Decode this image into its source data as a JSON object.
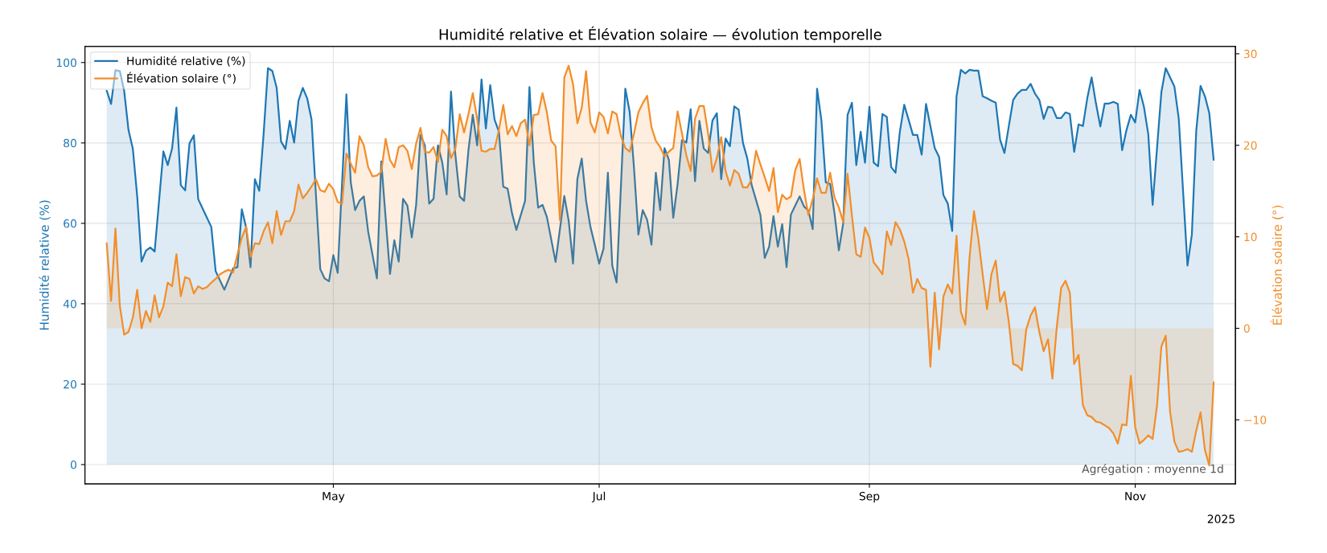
{
  "chart_data": {
    "type": "area",
    "title": "Humidité relative et Élévation solaire — évolution temporelle",
    "ylabel": "Humidité relative (%)",
    "y2label": "Élévation solaire (°)",
    "xlim": [
      "2025-03-05",
      "2025-11-24"
    ],
    "xticks": [
      {
        "value": "2025-05-01",
        "label": "May"
      },
      {
        "value": "2025-07-01",
        "label": "Jul"
      },
      {
        "value": "2025-09-01",
        "label": "Sep"
      },
      {
        "value": "2025-11-01",
        "label": "Nov"
      }
    ],
    "ylim": [
      -4.8,
      104.0
    ],
    "yticks": [
      0,
      20,
      40,
      60,
      80,
      100
    ],
    "y2lim": [
      -17.0,
      30.8
    ],
    "y2ticks": [
      {
        "value": -10,
        "label": "−10"
      },
      0,
      10,
      20,
      30
    ],
    "grid": true,
    "legend": "top left",
    "line_style": "solid",
    "marker": "none",
    "annotations": [
      "Agrégation : moyenne 1d",
      "2025"
    ],
    "series": [
      {
        "name": "Humidité relative (%)",
        "color": "#1f77b4",
        "axis": "y",
        "x": [
          "2025-03-10",
          "2025-03-11",
          "2025-03-12",
          "2025-03-13",
          "2025-03-14",
          "2025-03-15",
          "2025-03-16",
          "2025-03-17",
          "2025-03-18",
          "2025-03-19",
          "2025-03-20",
          "2025-03-21",
          "2025-03-23",
          "2025-03-24",
          "2025-03-25",
          "2025-03-26",
          "2025-03-27",
          "2025-03-28",
          "2025-03-29",
          "2025-03-30",
          "2025-03-31",
          "2025-04-03",
          "2025-04-04",
          "2025-04-06",
          "2025-04-08",
          "2025-04-09",
          "2025-04-10",
          "2025-04-11",
          "2025-04-12",
          "2025-04-13",
          "2025-04-14",
          "2025-04-15",
          "2025-04-16",
          "2025-04-17",
          "2025-04-18",
          "2025-04-19",
          "2025-04-20",
          "2025-04-21",
          "2025-04-22",
          "2025-04-23",
          "2025-04-24",
          "2025-04-25",
          "2025-04-26",
          "2025-04-28",
          "2025-04-29",
          "2025-04-30",
          "2025-05-01",
          "2025-05-02",
          "2025-05-04",
          "2025-05-05",
          "2025-05-06",
          "2025-05-07",
          "2025-05-08",
          "2025-05-09",
          "2025-05-11",
          "2025-05-12",
          "2025-05-14",
          "2025-05-15",
          "2025-05-16",
          "2025-05-17",
          "2025-05-18",
          "2025-05-19",
          "2025-05-20",
          "2025-05-21",
          "2025-05-22",
          "2025-05-23",
          "2025-05-24",
          "2025-05-25",
          "2025-05-26",
          "2025-05-27",
          "2025-05-28",
          "2025-05-29",
          "2025-05-30",
          "2025-05-31",
          "2025-06-01",
          "2025-06-02",
          "2025-06-03",
          "2025-06-04",
          "2025-06-05",
          "2025-06-06",
          "2025-06-07",
          "2025-06-08",
          "2025-06-09",
          "2025-06-10",
          "2025-06-11",
          "2025-06-12",
          "2025-06-14",
          "2025-06-15",
          "2025-06-16",
          "2025-06-17",
          "2025-06-18",
          "2025-06-19",
          "2025-06-21",
          "2025-06-23",
          "2025-06-24",
          "2025-06-25",
          "2025-06-26",
          "2025-06-27",
          "2025-06-28",
          "2025-06-29",
          "2025-06-30",
          "2025-07-01",
          "2025-07-02",
          "2025-07-03",
          "2025-07-04",
          "2025-07-05",
          "2025-07-07",
          "2025-07-08",
          "2025-07-09",
          "2025-07-10",
          "2025-07-11",
          "2025-07-12",
          "2025-07-13",
          "2025-07-14",
          "2025-07-15",
          "2025-07-16",
          "2025-07-17",
          "2025-07-18",
          "2025-07-19",
          "2025-07-20",
          "2025-07-21",
          "2025-07-22",
          "2025-07-23",
          "2025-07-24",
          "2025-07-25",
          "2025-07-26",
          "2025-07-27",
          "2025-07-28",
          "2025-07-29",
          "2025-07-30",
          "2025-07-31",
          "2025-08-01",
          "2025-08-02",
          "2025-08-03",
          "2025-08-04",
          "2025-08-05",
          "2025-08-07",
          "2025-08-08",
          "2025-08-09",
          "2025-08-10",
          "2025-08-11",
          "2025-08-12",
          "2025-08-13",
          "2025-08-14",
          "2025-08-16",
          "2025-08-17",
          "2025-08-18",
          "2025-08-19",
          "2025-08-20",
          "2025-08-21",
          "2025-08-22",
          "2025-08-23",
          "2025-08-24",
          "2025-08-25",
          "2025-08-26",
          "2025-08-27",
          "2025-08-28",
          "2025-08-29",
          "2025-08-30",
          "2025-08-31",
          "2025-09-01",
          "2025-09-02",
          "2025-09-03",
          "2025-09-04",
          "2025-09-05",
          "2025-09-06",
          "2025-09-07",
          "2025-09-08",
          "2025-09-09",
          "2025-09-10",
          "2025-09-11",
          "2025-09-12",
          "2025-09-13",
          "2025-09-14",
          "2025-09-15",
          "2025-09-16",
          "2025-09-17",
          "2025-09-18",
          "2025-09-19",
          "2025-09-20",
          "2025-09-21",
          "2025-09-22",
          "2025-09-23",
          "2025-09-24",
          "2025-09-25",
          "2025-09-26",
          "2025-09-27",
          "2025-09-28",
          "2025-09-29",
          "2025-09-30",
          "2025-10-01",
          "2025-10-02",
          "2025-10-03",
          "2025-10-04",
          "2025-10-05",
          "2025-10-06",
          "2025-10-07",
          "2025-10-08",
          "2025-10-09",
          "2025-10-10",
          "2025-10-11",
          "2025-10-12",
          "2025-10-13",
          "2025-10-14",
          "2025-10-15",
          "2025-10-16",
          "2025-10-17",
          "2025-10-18",
          "2025-10-19",
          "2025-10-20",
          "2025-10-21",
          "2025-10-22",
          "2025-10-23",
          "2025-10-24",
          "2025-10-25",
          "2025-10-26",
          "2025-10-27",
          "2025-10-28",
          "2025-10-29",
          "2025-10-30",
          "2025-10-31",
          "2025-11-01",
          "2025-11-02",
          "2025-11-03",
          "2025-11-04",
          "2025-11-05",
          "2025-11-07",
          "2025-11-08",
          "2025-11-09",
          "2025-11-10",
          "2025-11-11",
          "2025-11-13",
          "2025-11-14",
          "2025-11-15",
          "2025-11-16",
          "2025-11-17",
          "2025-11-18",
          "2025-11-19"
        ],
        "values": [
          93.0,
          89.7,
          98.1,
          97.9,
          93.0,
          83.2,
          78.5,
          66.7,
          50.5,
          53.2,
          54.0,
          53.0,
          77.9,
          74.5,
          78.6,
          88.8,
          69.5,
          68.2,
          79.9,
          81.9,
          66.0,
          59.1,
          48.1,
          43.5,
          48.8,
          49.1,
          63.5,
          58.9,
          49.1,
          71.0,
          68.1,
          82.2,
          98.6,
          97.9,
          93.7,
          80.4,
          78.5,
          85.5,
          80.1,
          90.5,
          93.7,
          91.1,
          85.8,
          48.6,
          46.3,
          45.6,
          52.1,
          47.7,
          92.1,
          70.2,
          63.3,
          65.6,
          66.7,
          57.9,
          46.3,
          75.4,
          47.4,
          55.8,
          50.5,
          66.1,
          64.4,
          56.5,
          64.6,
          82.0,
          79.4,
          64.9,
          66.1,
          79.4,
          75.1,
          67.2,
          92.8,
          77.1,
          66.7,
          65.6,
          78.2,
          87.0,
          79.4,
          95.8,
          83.6,
          94.4,
          85.8,
          82.8,
          69.1,
          68.6,
          62.5,
          58.4,
          65.6,
          93.9,
          75.1,
          63.9,
          64.6,
          61.6,
          50.4,
          66.8,
          60.7,
          50.0,
          71.0,
          76.1,
          65.6,
          59.1,
          54.7,
          50.0,
          53.7,
          72.6,
          49.5,
          45.3,
          93.5,
          87.7,
          73.7,
          57.2,
          63.3,
          60.9,
          54.7,
          72.6,
          63.3,
          78.7,
          75.8,
          61.4,
          69.8,
          80.7,
          80.1,
          88.4,
          70.5,
          85.5,
          78.6,
          77.5,
          85.6,
          87.4,
          71.0,
          81.1,
          79.2,
          89.1,
          88.3,
          80.0,
          76.1,
          69.5,
          62.1,
          51.4,
          54.2,
          61.8,
          54.2,
          59.8,
          49.1,
          62.2,
          66.7,
          64.2,
          63.2,
          58.6,
          93.5,
          85.6,
          70.2,
          69.8,
          62.5,
          53.3,
          60.0,
          87.0,
          90.0,
          74.5,
          82.8,
          75.1,
          89.0,
          75.1,
          74.2,
          87.2,
          86.5,
          74.0,
          72.6,
          82.8,
          89.5,
          85.8,
          82.0,
          82.0,
          77.1,
          89.7,
          84.2,
          78.7,
          76.5,
          67.0,
          64.9,
          58.1,
          91.6,
          98.2,
          97.3,
          98.2,
          98.0,
          98.0,
          91.6,
          91.1,
          90.5,
          90.0,
          80.8,
          77.5,
          84.2,
          90.7,
          92.3,
          93.2,
          93.2,
          94.7,
          92.3,
          90.7,
          86.0,
          89.0,
          88.8,
          86.2,
          86.2,
          87.6,
          87.2,
          77.8,
          84.6,
          84.2,
          91.1,
          96.3,
          89.8,
          84.1,
          89.8,
          89.8,
          90.2,
          89.7,
          78.2,
          83.2,
          87.0,
          85.1,
          93.2,
          89.0,
          82.2,
          64.6,
          92.6,
          98.6,
          96.3,
          94.0,
          86.0,
          49.5,
          57.2,
          82.9,
          94.2,
          91.6,
          87.4,
          75.8
        ]
      },
      {
        "name": "Élévation solaire (°)",
        "color": "#f28e2b",
        "axis": "y2",
        "x": [
          "2025-03-10",
          "2025-03-11",
          "2025-03-12",
          "2025-03-13",
          "2025-03-14",
          "2025-03-15",
          "2025-03-16",
          "2025-03-17",
          "2025-03-18",
          "2025-03-19",
          "2025-03-20",
          "2025-03-21",
          "2025-03-22",
          "2025-03-23",
          "2025-03-24",
          "2025-03-25",
          "2025-03-26",
          "2025-03-27",
          "2025-03-28",
          "2025-03-29",
          "2025-03-30",
          "2025-03-31",
          "2025-04-01",
          "2025-04-02",
          "2025-04-03",
          "2025-04-04",
          "2025-04-05",
          "2025-04-06",
          "2025-04-07",
          "2025-04-08",
          "2025-04-09",
          "2025-04-10",
          "2025-04-11",
          "2025-04-12",
          "2025-04-13",
          "2025-04-14",
          "2025-04-15",
          "2025-04-16",
          "2025-04-17",
          "2025-04-18",
          "2025-04-19",
          "2025-04-20",
          "2025-04-21",
          "2025-04-22",
          "2025-04-23",
          "2025-04-24",
          "2025-04-25",
          "2025-04-26",
          "2025-04-27",
          "2025-04-28",
          "2025-04-29",
          "2025-04-30",
          "2025-05-01",
          "2025-05-02",
          "2025-05-03",
          "2025-05-04",
          "2025-05-05",
          "2025-05-06",
          "2025-05-07",
          "2025-05-08",
          "2025-05-09",
          "2025-05-10",
          "2025-05-11",
          "2025-05-12",
          "2025-05-13",
          "2025-05-14",
          "2025-05-15",
          "2025-05-16",
          "2025-05-17",
          "2025-05-18",
          "2025-05-19",
          "2025-05-20",
          "2025-05-21",
          "2025-05-22",
          "2025-05-23",
          "2025-05-24",
          "2025-05-25",
          "2025-05-26",
          "2025-05-27",
          "2025-05-28",
          "2025-05-29",
          "2025-05-30",
          "2025-05-31",
          "2025-06-01",
          "2025-06-02",
          "2025-06-03",
          "2025-06-04",
          "2025-06-05",
          "2025-06-06",
          "2025-06-07",
          "2025-06-08",
          "2025-06-09",
          "2025-06-10",
          "2025-06-11",
          "2025-06-12",
          "2025-06-13",
          "2025-06-14",
          "2025-06-15",
          "2025-06-16",
          "2025-06-17",
          "2025-06-18",
          "2025-06-19",
          "2025-06-20",
          "2025-06-21",
          "2025-06-22",
          "2025-06-23",
          "2025-06-24",
          "2025-06-25",
          "2025-06-26",
          "2025-06-27",
          "2025-06-28",
          "2025-06-29",
          "2025-06-30",
          "2025-07-01",
          "2025-07-02",
          "2025-07-03",
          "2025-07-04",
          "2025-07-05",
          "2025-07-06",
          "2025-07-07",
          "2025-07-08",
          "2025-07-09",
          "2025-07-10",
          "2025-07-11",
          "2025-07-12",
          "2025-07-13",
          "2025-07-14",
          "2025-07-15",
          "2025-07-16",
          "2025-07-17",
          "2025-07-18",
          "2025-07-19",
          "2025-07-20",
          "2025-07-21",
          "2025-07-22",
          "2025-07-23",
          "2025-07-24",
          "2025-07-25",
          "2025-07-26",
          "2025-07-27",
          "2025-07-28",
          "2025-07-29",
          "2025-07-30",
          "2025-07-31",
          "2025-08-01",
          "2025-08-02",
          "2025-08-03",
          "2025-08-04",
          "2025-08-05",
          "2025-08-06",
          "2025-08-07",
          "2025-08-08",
          "2025-08-09",
          "2025-08-10",
          "2025-08-11",
          "2025-08-12",
          "2025-08-13",
          "2025-08-14",
          "2025-08-15",
          "2025-08-16",
          "2025-08-17",
          "2025-08-18",
          "2025-08-19",
          "2025-08-20",
          "2025-08-21",
          "2025-08-22",
          "2025-08-23",
          "2025-08-24",
          "2025-08-25",
          "2025-08-26",
          "2025-08-27",
          "2025-08-28",
          "2025-08-29",
          "2025-08-30",
          "2025-08-31",
          "2025-09-01",
          "2025-09-02",
          "2025-09-03",
          "2025-09-04",
          "2025-09-05",
          "2025-09-06",
          "2025-09-07",
          "2025-09-08",
          "2025-09-09",
          "2025-09-10",
          "2025-09-11",
          "2025-09-12",
          "2025-09-13",
          "2025-09-14",
          "2025-09-15",
          "2025-09-16",
          "2025-09-17",
          "2025-09-18",
          "2025-09-19",
          "2025-09-20",
          "2025-09-21",
          "2025-09-22",
          "2025-09-23",
          "2025-09-24",
          "2025-09-25",
          "2025-09-26",
          "2025-09-27",
          "2025-09-28",
          "2025-09-29",
          "2025-09-30",
          "2025-10-01",
          "2025-10-02",
          "2025-10-03",
          "2025-10-04",
          "2025-10-05",
          "2025-10-06",
          "2025-10-07",
          "2025-10-08",
          "2025-10-09",
          "2025-10-10",
          "2025-10-11",
          "2025-10-12",
          "2025-10-13",
          "2025-10-14",
          "2025-10-15",
          "2025-10-16",
          "2025-10-17",
          "2025-10-18",
          "2025-10-19",
          "2025-10-20",
          "2025-10-21",
          "2025-10-22",
          "2025-10-23",
          "2025-10-24",
          "2025-10-25",
          "2025-10-26",
          "2025-10-27",
          "2025-10-28",
          "2025-10-29",
          "2025-10-30",
          "2025-10-31",
          "2025-11-01",
          "2025-11-02",
          "2025-11-03",
          "2025-11-04",
          "2025-11-05",
          "2025-11-06",
          "2025-11-07",
          "2025-11-08",
          "2025-11-09",
          "2025-11-10",
          "2025-11-11",
          "2025-11-12",
          "2025-11-13",
          "2025-11-14",
          "2025-11-15",
          "2025-11-16",
          "2025-11-17",
          "2025-11-18",
          "2025-11-19"
        ],
        "values": [
          9.3,
          3.0,
          10.9,
          2.5,
          -0.7,
          -0.4,
          1.2,
          4.2,
          0.0,
          1.9,
          0.7,
          3.6,
          1.2,
          2.4,
          5.0,
          4.6,
          8.1,
          3.5,
          5.6,
          5.4,
          3.8,
          4.6,
          4.3,
          4.5,
          5.0,
          5.4,
          5.9,
          6.2,
          6.4,
          6.1,
          8.1,
          9.9,
          11.1,
          7.8,
          9.3,
          9.2,
          10.6,
          11.6,
          9.3,
          12.8,
          10.2,
          11.7,
          11.7,
          12.8,
          15.7,
          14.2,
          14.8,
          15.5,
          16.3,
          15.1,
          14.9,
          15.8,
          15.2,
          13.8,
          13.6,
          19.1,
          18.0,
          17.0,
          21.0,
          20.0,
          17.6,
          16.6,
          16.7,
          17.1,
          20.7,
          18.4,
          17.6,
          19.8,
          20.0,
          19.4,
          17.4,
          20.2,
          21.9,
          19.3,
          19.2,
          19.8,
          18.2,
          21.7,
          21.0,
          18.6,
          19.6,
          23.4,
          21.4,
          23.4,
          25.7,
          22.9,
          19.4,
          19.3,
          19.6,
          19.6,
          21.7,
          24.4,
          21.2,
          22.1,
          21.0,
          22.4,
          22.8,
          20.0,
          23.3,
          23.4,
          25.7,
          23.6,
          20.5,
          19.9,
          11.8,
          27.4,
          28.7,
          26.7,
          22.4,
          24.1,
          28.1,
          22.5,
          21.4,
          23.6,
          23.1,
          21.3,
          23.7,
          23.4,
          21.0,
          19.7,
          19.3,
          21.3,
          23.6,
          24.6,
          25.4,
          22.0,
          20.5,
          19.8,
          18.8,
          19.3,
          19.7,
          23.7,
          21.3,
          18.9,
          17.2,
          22.9,
          24.3,
          24.3,
          21.3,
          17.1,
          18.6,
          20.9,
          17.2,
          15.6,
          17.3,
          16.9,
          15.4,
          15.4,
          16.3,
          19.4,
          17.9,
          16.5,
          15.0,
          17.5,
          12.7,
          14.6,
          14.1,
          14.4,
          17.3,
          18.5,
          15.1,
          12.4,
          14.1,
          16.4,
          14.8,
          14.8,
          17.0,
          14.3,
          13.2,
          11.6,
          16.9,
          12.3,
          8.1,
          7.8,
          11.0,
          9.9,
          7.2,
          6.6,
          5.9,
          10.6,
          9.1,
          11.6,
          10.8,
          9.5,
          7.6,
          3.9,
          5.4,
          4.4,
          4.2,
          -4.2,
          3.9,
          -2.3,
          3.5,
          4.8,
          3.8,
          10.1,
          1.8,
          0.4,
          7.8,
          12.8,
          9.8,
          5.9,
          2.1,
          5.9,
          7.4,
          2.9,
          4.0,
          0.7,
          -3.9,
          -4.1,
          -4.6,
          -0.1,
          1.4,
          2.3,
          -0.4,
          -2.5,
          -1.2,
          -5.5,
          0.1,
          4.4,
          5.2,
          3.9,
          -3.9,
          -2.9,
          -8.4,
          -9.5,
          -9.7,
          -10.2,
          -10.3,
          -10.6,
          -10.9,
          -11.5,
          -12.6,
          -10.5,
          -10.6,
          -5.2,
          -10.8,
          -12.6,
          -12.2,
          -11.7,
          -12.1,
          -8.5,
          -2.0,
          -0.8,
          -9.1,
          -12.4,
          -13.5,
          -13.4,
          -13.2,
          -13.5,
          -11.2,
          -9.2,
          -13.3,
          -15.0,
          -5.9
        ]
      }
    ]
  }
}
